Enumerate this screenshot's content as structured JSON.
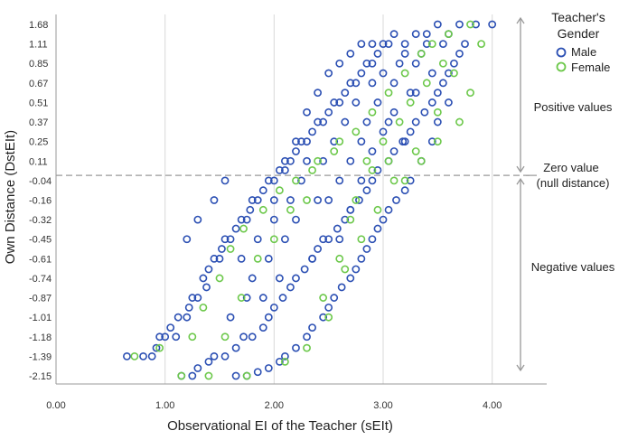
{
  "chart_data": {
    "type": "scatter",
    "xlabel": "Observational EI of the Teacher (sEIt)",
    "ylabel": "Own Distance (DstEIt)",
    "xlim": [
      0,
      4.5
    ],
    "xticks": [
      "0.00",
      "1.00",
      "2.00",
      "3.00",
      "4.00"
    ],
    "yticks": [
      "1.68",
      "1.11",
      "0.85",
      "0.67",
      "0.51",
      "0.37",
      "0.25",
      "0.11",
      "-0.04",
      "-0.16",
      "-0.32",
      "-0.45",
      "-0.61",
      "-0.74",
      "-0.87",
      "-1.01",
      "-1.18",
      "-1.39",
      "-2.15"
    ],
    "grid": "vertical",
    "legend": {
      "title": "Teacher's Gender",
      "placement": "top-right",
      "entries": [
        {
          "label": "Male",
          "color": "#2b4fb3"
        },
        {
          "label": "Female",
          "color": "#6cc84a"
        }
      ]
    },
    "reference_line": {
      "y": 0,
      "style": "dashed"
    },
    "annotations": {
      "positive": "Positive values",
      "zero_line1": "Zero value",
      "zero_line2": "(null distance)",
      "negative": "Negative values"
    },
    "series": [
      {
        "name": "Male",
        "color": "#2b4fb3",
        "points": [
          [
            0.65,
            -1.39
          ],
          [
            0.8,
            -1.39
          ],
          [
            0.88,
            -1.39
          ],
          [
            0.92,
            -1.3
          ],
          [
            0.95,
            -1.18
          ],
          [
            1.0,
            -1.18
          ],
          [
            1.05,
            -1.1
          ],
          [
            1.1,
            -1.18
          ],
          [
            1.12,
            -1.01
          ],
          [
            1.2,
            -1.01
          ],
          [
            1.22,
            -0.94
          ],
          [
            1.25,
            -0.87
          ],
          [
            1.3,
            -0.87
          ],
          [
            1.35,
            -0.74
          ],
          [
            1.38,
            -0.8
          ],
          [
            1.4,
            -0.68
          ],
          [
            1.45,
            -0.61
          ],
          [
            1.5,
            -0.61
          ],
          [
            1.52,
            -0.53
          ],
          [
            1.55,
            -0.45
          ],
          [
            1.6,
            -0.45
          ],
          [
            1.65,
            -0.38
          ],
          [
            1.7,
            -0.32
          ],
          [
            1.75,
            -0.32
          ],
          [
            1.78,
            -0.24
          ],
          [
            1.8,
            -0.16
          ],
          [
            1.85,
            -0.16
          ],
          [
            1.9,
            -0.1
          ],
          [
            1.95,
            -0.04
          ],
          [
            2.0,
            -0.04
          ],
          [
            2.05,
            0.04
          ],
          [
            2.1,
            0.11
          ],
          [
            2.15,
            0.11
          ],
          [
            2.2,
            0.18
          ],
          [
            2.25,
            0.25
          ],
          [
            2.3,
            0.25
          ],
          [
            2.35,
            0.31
          ],
          [
            2.4,
            0.37
          ],
          [
            2.45,
            0.37
          ],
          [
            2.5,
            0.44
          ],
          [
            2.55,
            0.51
          ],
          [
            2.6,
            0.51
          ],
          [
            2.65,
            0.59
          ],
          [
            2.7,
            0.67
          ],
          [
            2.75,
            0.67
          ],
          [
            2.8,
            0.76
          ],
          [
            2.85,
            0.85
          ],
          [
            2.9,
            0.85
          ],
          [
            2.95,
            0.98
          ],
          [
            3.0,
            1.11
          ],
          [
            3.05,
            1.11
          ],
          [
            3.1,
            1.4
          ],
          [
            3.2,
            1.11
          ],
          [
            3.3,
            1.4
          ],
          [
            3.4,
            1.4
          ],
          [
            3.5,
            1.68
          ],
          [
            3.6,
            1.4
          ],
          [
            3.7,
            1.68
          ],
          [
            3.85,
            1.68
          ],
          [
            4.0,
            1.68
          ],
          [
            1.15,
            -2.15
          ],
          [
            1.25,
            -2.15
          ],
          [
            1.3,
            -1.85
          ],
          [
            1.4,
            -1.6
          ],
          [
            1.45,
            -1.39
          ],
          [
            1.55,
            -1.39
          ],
          [
            1.65,
            -1.3
          ],
          [
            1.72,
            -1.18
          ],
          [
            1.8,
            -1.18
          ],
          [
            1.9,
            -1.1
          ],
          [
            1.95,
            -1.01
          ],
          [
            2.0,
            -0.94
          ],
          [
            2.08,
            -0.87
          ],
          [
            2.15,
            -0.8
          ],
          [
            2.2,
            -0.74
          ],
          [
            2.28,
            -0.68
          ],
          [
            2.35,
            -0.61
          ],
          [
            2.4,
            -0.53
          ],
          [
            2.45,
            -0.45
          ],
          [
            2.5,
            -0.45
          ],
          [
            2.58,
            -0.38
          ],
          [
            2.65,
            -0.32
          ],
          [
            2.7,
            -0.24
          ],
          [
            2.78,
            -0.16
          ],
          [
            2.85,
            -0.1
          ],
          [
            2.9,
            -0.04
          ],
          [
            2.95,
            0.04
          ],
          [
            3.05,
            0.11
          ],
          [
            3.1,
            0.18
          ],
          [
            3.18,
            0.25
          ],
          [
            3.25,
            0.31
          ],
          [
            3.3,
            0.37
          ],
          [
            3.38,
            0.44
          ],
          [
            3.45,
            0.51
          ],
          [
            3.5,
            0.59
          ],
          [
            3.55,
            0.67
          ],
          [
            3.6,
            0.76
          ],
          [
            3.65,
            0.85
          ],
          [
            3.7,
            0.98
          ],
          [
            3.75,
            1.11
          ],
          [
            1.65,
            -2.15
          ],
          [
            1.75,
            -2.15
          ],
          [
            1.85,
            -2.0
          ],
          [
            1.95,
            -1.85
          ],
          [
            2.05,
            -1.6
          ],
          [
            2.1,
            -1.39
          ],
          [
            2.2,
            -1.3
          ],
          [
            2.3,
            -1.18
          ],
          [
            2.35,
            -1.1
          ],
          [
            2.45,
            -1.01
          ],
          [
            2.5,
            -0.94
          ],
          [
            2.55,
            -0.87
          ],
          [
            2.62,
            -0.8
          ],
          [
            2.7,
            -0.74
          ],
          [
            2.75,
            -0.68
          ],
          [
            2.8,
            -0.61
          ],
          [
            2.85,
            -0.53
          ],
          [
            2.9,
            -0.45
          ],
          [
            2.95,
            -0.38
          ],
          [
            3.0,
            -0.32
          ],
          [
            3.05,
            -0.24
          ],
          [
            3.12,
            -0.16
          ],
          [
            3.2,
            -0.1
          ],
          [
            3.25,
            -0.04
          ],
          [
            3.35,
            0.11
          ],
          [
            3.45,
            0.25
          ],
          [
            3.5,
            0.37
          ],
          [
            3.6,
            0.51
          ],
          [
            1.2,
            -0.45
          ],
          [
            1.3,
            -0.32
          ],
          [
            1.45,
            -0.16
          ],
          [
            1.55,
            -0.04
          ],
          [
            1.6,
            -1.01
          ],
          [
            1.7,
            -0.61
          ],
          [
            1.75,
            -0.87
          ],
          [
            1.85,
            -0.45
          ],
          [
            1.95,
            -0.61
          ],
          [
            2.0,
            -0.32
          ],
          [
            2.05,
            -0.74
          ],
          [
            2.1,
            -0.45
          ],
          [
            2.15,
            -0.16
          ],
          [
            2.25,
            -0.04
          ],
          [
            2.3,
            0.11
          ],
          [
            2.4,
            -0.16
          ],
          [
            2.45,
            0.11
          ],
          [
            2.55,
            0.25
          ],
          [
            2.6,
            -0.04
          ],
          [
            2.65,
            0.37
          ],
          [
            2.7,
            0.11
          ],
          [
            2.75,
            0.51
          ],
          [
            2.8,
            0.25
          ],
          [
            2.85,
            0.37
          ],
          [
            2.9,
            0.67
          ],
          [
            2.95,
            0.51
          ],
          [
            3.0,
            0.76
          ],
          [
            3.05,
            0.37
          ],
          [
            3.1,
            0.67
          ],
          [
            3.15,
            0.85
          ],
          [
            3.2,
            0.98
          ],
          [
            3.25,
            0.59
          ],
          [
            3.3,
            0.85
          ],
          [
            3.35,
            0.98
          ],
          [
            3.4,
            1.11
          ],
          [
            3.45,
            0.76
          ],
          [
            3.55,
            1.11
          ],
          [
            2.2,
            -0.32
          ],
          [
            2.35,
            -0.61
          ],
          [
            2.5,
            -0.16
          ],
          [
            2.6,
            -0.45
          ],
          [
            2.7,
            -0.24
          ],
          [
            2.8,
            -0.04
          ],
          [
            2.9,
            0.18
          ],
          [
            3.0,
            0.31
          ],
          [
            3.1,
            0.44
          ],
          [
            3.2,
            0.25
          ],
          [
            3.3,
            0.59
          ],
          [
            1.8,
            -0.74
          ],
          [
            1.9,
            -0.87
          ],
          [
            2.0,
            -0.16
          ],
          [
            2.1,
            0.04
          ],
          [
            2.2,
            0.25
          ],
          [
            2.3,
            0.44
          ],
          [
            2.4,
            0.59
          ],
          [
            2.5,
            0.76
          ],
          [
            2.6,
            0.85
          ],
          [
            2.7,
            0.98
          ],
          [
            2.8,
            1.11
          ],
          [
            2.9,
            1.11
          ]
        ]
      },
      {
        "name": "Female",
        "color": "#6cc84a",
        "points": [
          [
            0.72,
            -1.39
          ],
          [
            0.95,
            -1.3
          ],
          [
            1.15,
            -2.15
          ],
          [
            1.4,
            -2.15
          ],
          [
            1.25,
            -1.18
          ],
          [
            1.35,
            -0.94
          ],
          [
            1.5,
            -0.74
          ],
          [
            1.6,
            -0.53
          ],
          [
            1.72,
            -0.38
          ],
          [
            1.9,
            -0.24
          ],
          [
            2.05,
            -0.1
          ],
          [
            2.2,
            -0.04
          ],
          [
            2.35,
            0.04
          ],
          [
            2.55,
            0.18
          ],
          [
            2.75,
            0.31
          ],
          [
            2.9,
            0.44
          ],
          [
            3.05,
            0.59
          ],
          [
            3.2,
            0.76
          ],
          [
            3.35,
            0.98
          ],
          [
            3.45,
            1.11
          ],
          [
            3.6,
            1.4
          ],
          [
            3.8,
            1.68
          ],
          [
            1.75,
            -2.15
          ],
          [
            2.1,
            -1.6
          ],
          [
            2.3,
            -1.3
          ],
          [
            2.5,
            -1.01
          ],
          [
            2.65,
            -0.68
          ],
          [
            2.8,
            -0.45
          ],
          [
            2.95,
            -0.24
          ],
          [
            3.1,
            -0.04
          ],
          [
            3.3,
            0.18
          ],
          [
            3.5,
            0.44
          ],
          [
            3.65,
            0.76
          ],
          [
            3.8,
            0.59
          ],
          [
            1.55,
            -1.18
          ],
          [
            1.7,
            -0.87
          ],
          [
            1.85,
            -0.61
          ],
          [
            2.0,
            -0.45
          ],
          [
            2.15,
            -0.24
          ],
          [
            2.3,
            -0.16
          ],
          [
            2.4,
            0.11
          ],
          [
            2.6,
            0.25
          ],
          [
            2.7,
            -0.32
          ],
          [
            2.85,
            0.11
          ],
          [
            3.0,
            0.25
          ],
          [
            3.15,
            0.37
          ],
          [
            3.25,
            0.51
          ],
          [
            3.4,
            0.67
          ],
          [
            3.55,
            0.85
          ],
          [
            2.45,
            -0.87
          ],
          [
            2.6,
            -0.61
          ],
          [
            2.75,
            -0.16
          ],
          [
            2.9,
            0.04
          ],
          [
            3.05,
            0.11
          ],
          [
            3.2,
            -0.04
          ],
          [
            3.35,
            0.11
          ],
          [
            3.5,
            0.25
          ],
          [
            3.7,
            0.37
          ],
          [
            3.9,
            1.11
          ]
        ]
      }
    ]
  }
}
